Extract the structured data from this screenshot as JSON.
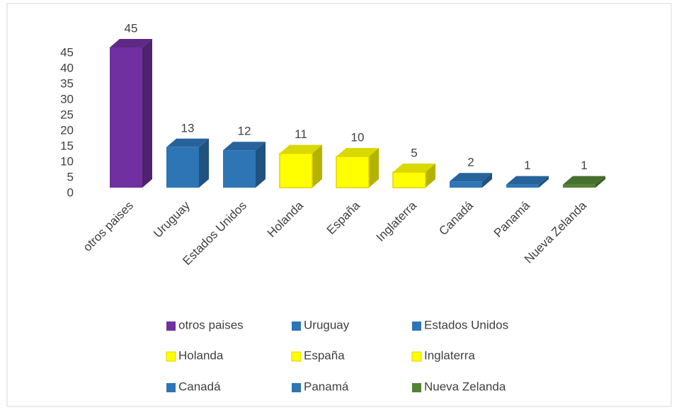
{
  "chart_data": {
    "type": "bar3d",
    "categories": [
      "otros paises",
      "Uruguay",
      "Estados Unidos",
      "Holanda",
      "España",
      "Inglaterra",
      "Canadá",
      "Panamá",
      "Nueva Zelanda"
    ],
    "values": [
      45,
      13,
      12,
      11,
      10,
      5,
      2,
      1,
      1
    ],
    "colors": [
      "#7030a0",
      "#2e75b6",
      "#2e75b6",
      "#ffff00",
      "#ffff00",
      "#ffff00",
      "#2e75b6",
      "#2e75b6",
      "#548235"
    ],
    "ylim": [
      0,
      45
    ],
    "yticks": [
      0,
      5,
      10,
      15,
      20,
      25,
      30,
      35,
      40,
      45
    ],
    "grid": false,
    "legend": "bottom"
  }
}
